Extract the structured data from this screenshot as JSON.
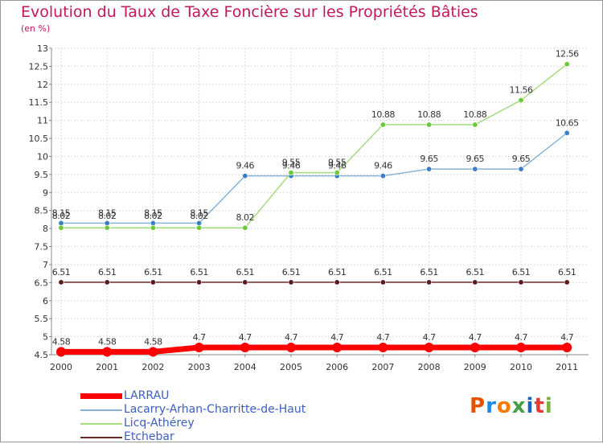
{
  "title": "Evolution du Taux de Taxe Foncière sur les Propriétés Bâties",
  "unit_label": "(en %)",
  "logo": {
    "text": "Proxiti",
    "letters": [
      "P",
      "r",
      "o",
      "x",
      "i",
      "t",
      "i"
    ],
    "colors": [
      "#e65100",
      "#1e88e5",
      "#f57c00",
      "#43a047",
      "#1565c0",
      "#e53935",
      "#7cb342"
    ]
  },
  "chart_data": {
    "type": "line",
    "title": "Evolution du Taux de Taxe Foncière sur les Propriétés Bâties",
    "ylabel": "(en %)",
    "xlabel": "",
    "ylim": [
      4.5,
      13
    ],
    "yticks": [
      "4.5",
      "5",
      "5.5",
      "6",
      "6.5",
      "7",
      "7.5",
      "8",
      "8.5",
      "9",
      "9.5",
      "10",
      "10.5",
      "11",
      "11.5",
      "12",
      "12.5",
      "13"
    ],
    "categories": [
      "2000",
      "2001",
      "2002",
      "2003",
      "2004",
      "2005",
      "2006",
      "2007",
      "2008",
      "2009",
      "2010",
      "2011"
    ],
    "series": [
      {
        "name": "LARRAU",
        "color": "#ff0000",
        "values": [
          4.58,
          4.58,
          4.58,
          4.7,
          4.7,
          4.7,
          4.7,
          4.7,
          4.7,
          4.7,
          4.7,
          4.7
        ],
        "labels": [
          "4.58",
          "4.58",
          "4.58",
          "4.7",
          "4.7",
          "4.7",
          "4.7",
          "4.7",
          "4.7",
          "4.7",
          "4.7",
          "4.7"
        ]
      },
      {
        "name": "Lacarry-Arhan-Charritte-de-Haut",
        "color": "#88b3d8",
        "marker": "#3a7fc6",
        "values": [
          8.15,
          8.15,
          8.15,
          8.15,
          9.46,
          9.46,
          9.46,
          9.46,
          9.65,
          9.65,
          9.65,
          10.65
        ],
        "labels": [
          "8.15",
          "8.15",
          "8.15",
          "8.15",
          "9.46",
          "9.46",
          "9.46",
          "9.46",
          "9.65",
          "9.65",
          "9.65",
          "10.65"
        ]
      },
      {
        "name": "Licq-Athérey",
        "color": "#a5dc7e",
        "marker": "#6cc93a",
        "values": [
          8.02,
          8.02,
          8.02,
          8.02,
          8.02,
          9.55,
          9.55,
          10.88,
          10.88,
          10.88,
          11.56,
          12.56
        ],
        "labels": [
          "8.02",
          "8.02",
          "8.02",
          "8.02",
          "8.02",
          "9.55",
          "9.55",
          "10.88",
          "10.88",
          "10.88",
          "11.56",
          "12.56"
        ]
      },
      {
        "name": "Etchebar",
        "color": "#6b2a2a",
        "marker": "#5a1c1c",
        "values": [
          6.51,
          6.51,
          6.51,
          6.51,
          6.51,
          6.51,
          6.51,
          6.51,
          6.51,
          6.51,
          6.51,
          6.51
        ],
        "labels": [
          "6.51",
          "6.51",
          "6.51",
          "6.51",
          "6.51",
          "6.51",
          "6.51",
          "6.51",
          "6.51",
          "6.51",
          "6.51",
          "6.51"
        ]
      }
    ]
  }
}
